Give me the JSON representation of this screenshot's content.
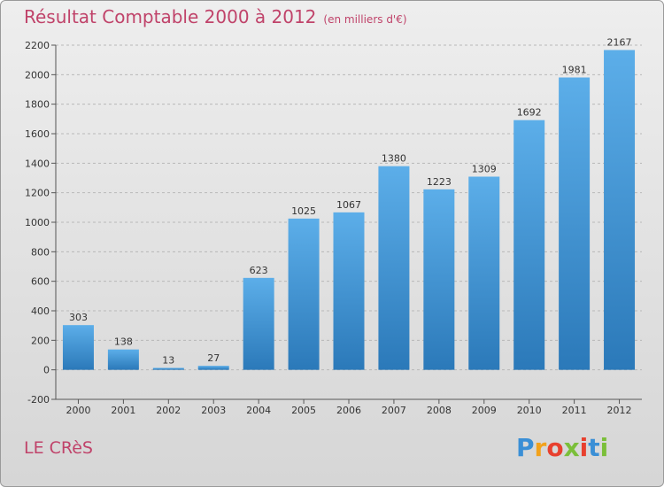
{
  "header": {
    "title": "Résultat Comptable 2000 à 2012",
    "subtitle": "(en milliers d'€)"
  },
  "footer": {
    "place": "LE CRèS",
    "brand": "Proxiti"
  },
  "colors": {
    "accent": "#c0436a",
    "bar_top": "#5aaee8",
    "bar_bottom": "#2a78b8"
  },
  "chart_data": {
    "type": "bar",
    "title": "Résultat Comptable 2000 à 2012",
    "subtitle": "(en milliers d'€)",
    "categories": [
      "2000",
      "2001",
      "2002",
      "2003",
      "2004",
      "2005",
      "2006",
      "2007",
      "2008",
      "2009",
      "2010",
      "2011",
      "2012"
    ],
    "values": [
      303,
      138,
      13,
      27,
      623,
      1025,
      1067,
      1380,
      1223,
      1309,
      1692,
      1981,
      2167
    ],
    "ylim": [
      -200,
      2200
    ],
    "yticks": [
      -200,
      0,
      200,
      400,
      600,
      800,
      1000,
      1200,
      1400,
      1600,
      1800,
      2000,
      2200
    ],
    "grid": true,
    "legend": "none"
  }
}
